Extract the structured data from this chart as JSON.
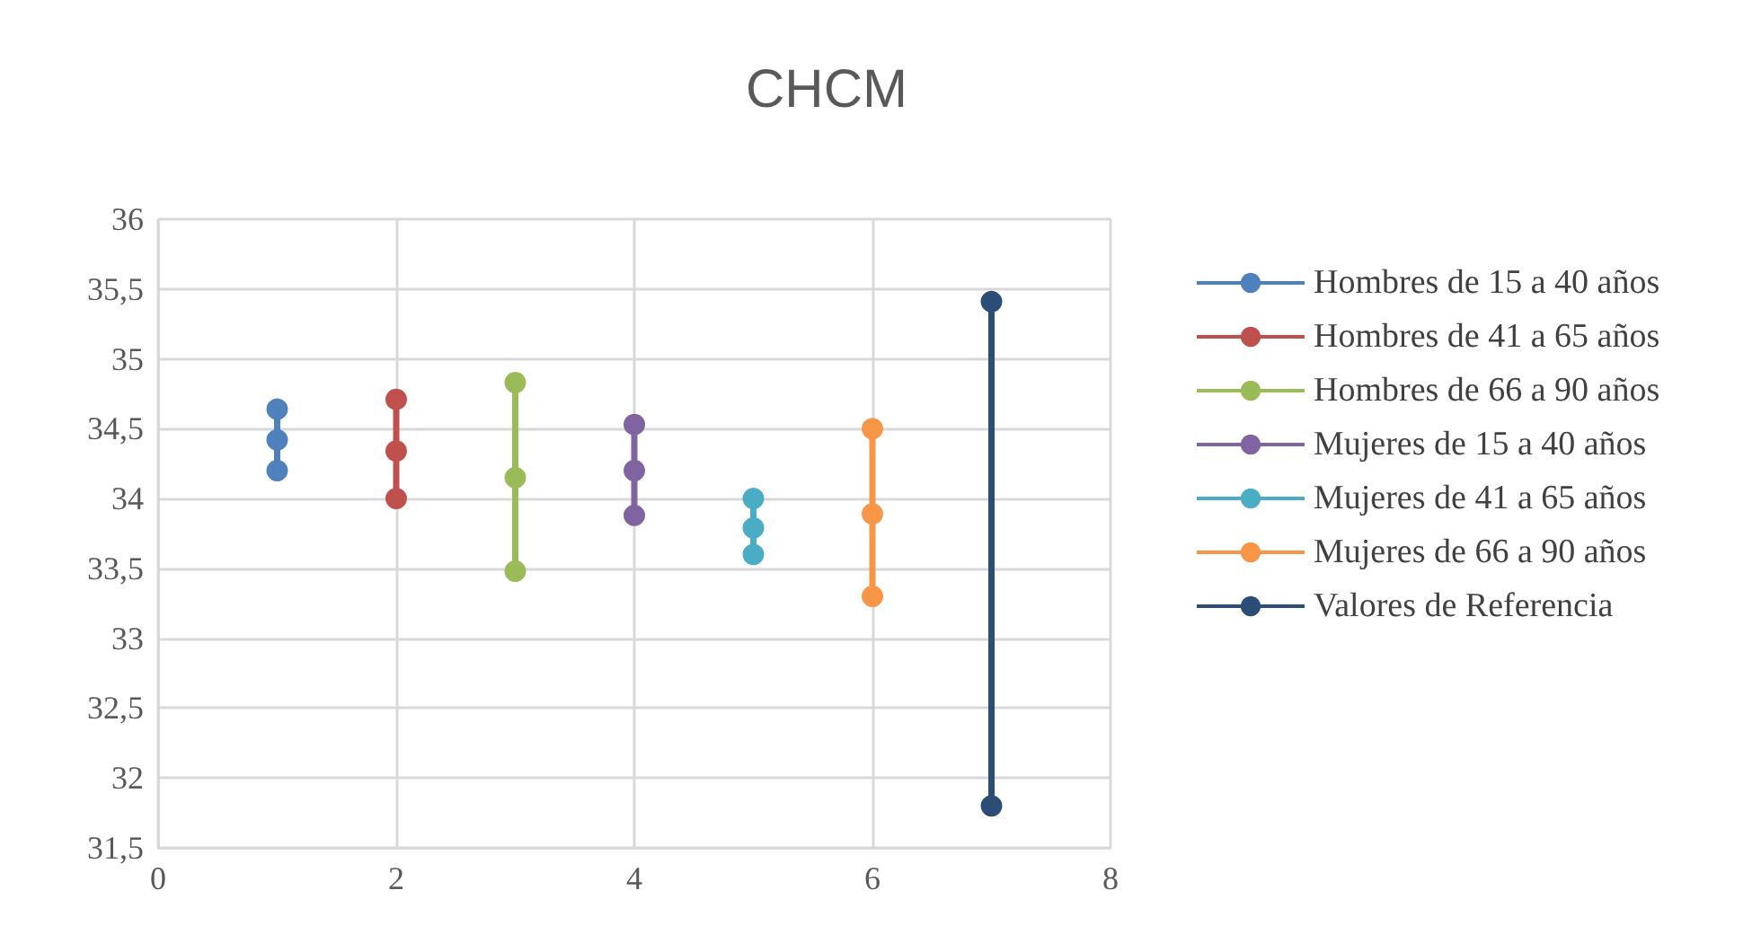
{
  "chart_data": {
    "type": "line",
    "title": "CHCM",
    "series": [
      {
        "name": "Hombres de 15 a 40 años",
        "color": "#4f81bd",
        "x": [
          1,
          1,
          1
        ],
        "values": [
          34.64,
          34.42,
          34.2
        ]
      },
      {
        "name": "Hombres de 41 a 65 años",
        "color": "#c0504d",
        "x": [
          2,
          2,
          2
        ],
        "values": [
          34.71,
          34.34,
          34.0
        ]
      },
      {
        "name": "Hombres de 66 a 90 años",
        "color": "#9bbb59",
        "x": [
          3,
          3,
          3
        ],
        "values": [
          34.83,
          34.15,
          33.48
        ]
      },
      {
        "name": "Mujeres de 15 a 40 años",
        "color": "#8064a2",
        "x": [
          4,
          4,
          4
        ],
        "values": [
          34.53,
          34.2,
          33.88
        ]
      },
      {
        "name": "Mujeres de 41 a 65 años",
        "color": "#4bacc6",
        "x": [
          5,
          5,
          5
        ],
        "values": [
          34.0,
          33.79,
          33.6
        ]
      },
      {
        "name": "Mujeres de 66 a 90 años",
        "color": "#f79646",
        "x": [
          6,
          6,
          6
        ],
        "values": [
          34.5,
          33.89,
          33.3
        ]
      },
      {
        "name": "Valores de Referencia",
        "color": "#2c4d75",
        "x": [
          7,
          7
        ],
        "values": [
          35.41,
          31.8
        ]
      }
    ],
    "xlim": [
      0,
      8
    ],
    "xticks": [
      0,
      2,
      4,
      6,
      8
    ],
    "ylim": [
      31.5,
      36
    ],
    "yticks": [
      {
        "value": 31.5,
        "label": "31,5"
      },
      32,
      {
        "value": 32.5,
        "label": "32,5"
      },
      33,
      {
        "value": 33.5,
        "label": "33,5"
      },
      34,
      {
        "value": 34.5,
        "label": "34,5"
      },
      35,
      {
        "value": 35.5,
        "label": "35,5"
      },
      36
    ],
    "grid": true,
    "legend": "right",
    "marker": "circle",
    "line_style": "solid"
  }
}
